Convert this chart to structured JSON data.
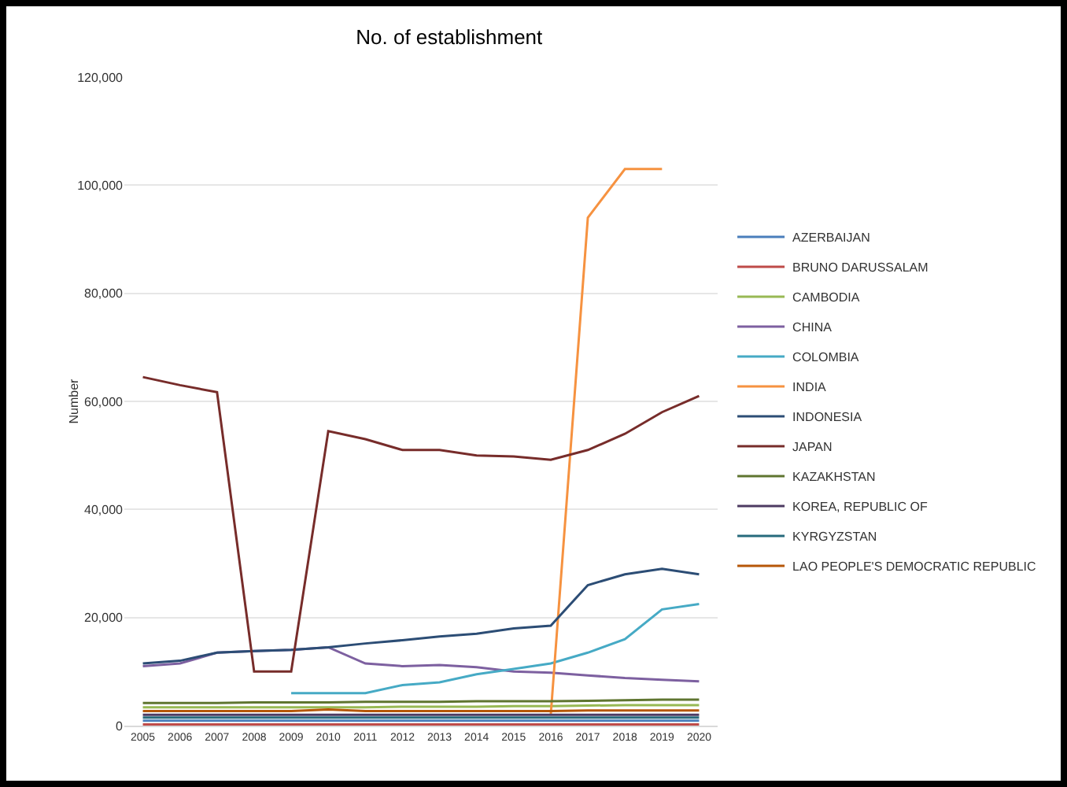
{
  "chart_data": {
    "type": "line",
    "title": "No. of establishment",
    "ylabel": "Number",
    "categories": [
      "2005",
      "2006",
      "2007",
      "2008",
      "2009",
      "2010",
      "2011",
      "2012",
      "2013",
      "2014",
      "2015",
      "2016",
      "2017",
      "2018",
      "2019",
      "2020"
    ],
    "series": [
      {
        "name": "AZERBAIJAN",
        "color": "#4a7ebb",
        "values": [
          900,
          900,
          900,
          900,
          900,
          900,
          900,
          900,
          900,
          900,
          900,
          900,
          900,
          900,
          900,
          900
        ]
      },
      {
        "name": "BRUNO DARUSSALAM",
        "color": "#be4b48",
        "values": [
          200,
          200,
          200,
          200,
          200,
          200,
          200,
          200,
          200,
          200,
          200,
          200,
          200,
          200,
          200,
          200
        ]
      },
      {
        "name": "CAMBODIA",
        "color": "#98b954",
        "values": [
          3400,
          3400,
          3400,
          3400,
          3400,
          3400,
          3400,
          3500,
          3500,
          3500,
          3600,
          3600,
          3700,
          3800,
          3800,
          3800
        ]
      },
      {
        "name": "CHINA",
        "color": "#7d60a0",
        "values": [
          11000,
          11500,
          13500,
          13800,
          14000,
          14500,
          11500,
          11000,
          11200,
          10800,
          10000,
          9800,
          9300,
          8800,
          8500,
          8200
        ]
      },
      {
        "name": "COLOMBIA",
        "color": "#46aac5",
        "values": [
          null,
          null,
          null,
          null,
          6000,
          6000,
          6000,
          7500,
          8000,
          9500,
          10500,
          11500,
          13500,
          16000,
          21500,
          22500
        ]
      },
      {
        "name": "INDIA",
        "color": "#f69240",
        "values": [
          null,
          null,
          null,
          null,
          null,
          null,
          null,
          null,
          null,
          null,
          null,
          2000,
          94000,
          103000,
          103000,
          null
        ]
      },
      {
        "name": "INDONESIA",
        "color": "#2c4d75",
        "values": [
          11500,
          12000,
          13500,
          13800,
          14000,
          14500,
          15200,
          15800,
          16500,
          17000,
          18000,
          18500,
          26000,
          28000,
          29000,
          28000
        ]
      },
      {
        "name": "JAPAN",
        "color": "#772c2a",
        "values": [
          64500,
          63000,
          61700,
          10000,
          10000,
          54500,
          53000,
          51000,
          51000,
          50000,
          49800,
          49200,
          51000,
          54000,
          58000,
          61000
        ]
      },
      {
        "name": "KAZAKHSTAN",
        "color": "#5f7530",
        "values": [
          4200,
          4200,
          4200,
          4300,
          4300,
          4300,
          4400,
          4400,
          4400,
          4500,
          4500,
          4500,
          4600,
          4700,
          4800,
          4800
        ]
      },
      {
        "name": "KOREA, REPUBLIC OF",
        "color": "#4d3b62",
        "values": [
          2000,
          2000,
          2000,
          2000,
          2000,
          2000,
          2000,
          2000,
          2000,
          2000,
          2000,
          2000,
          2000,
          2000,
          2000,
          2000
        ]
      },
      {
        "name": "KYRGYZSTAN",
        "color": "#276a7c",
        "values": [
          1500,
          1500,
          1500,
          1500,
          1500,
          1500,
          1500,
          1500,
          1500,
          1500,
          1500,
          1500,
          1500,
          1500,
          1500,
          1500
        ]
      },
      {
        "name": "LAO PEOPLE'S DEMOCRATIC REPUBLIC",
        "color": "#b65708",
        "values": [
          2700,
          2700,
          2700,
          2700,
          2700,
          3000,
          2700,
          2700,
          2700,
          2700,
          2700,
          2700,
          2800,
          2800,
          2800,
          2800
        ]
      }
    ],
    "ylim": [
      0,
      120000
    ],
    "yticks": [
      {
        "value": 0,
        "label": "0"
      },
      {
        "value": 20000,
        "label": "20,000"
      },
      {
        "value": 40000,
        "label": "40,000"
      },
      {
        "value": 60000,
        "label": "60,000"
      },
      {
        "value": 80000,
        "label": "80,000"
      },
      {
        "value": 100000,
        "label": "100,000"
      },
      {
        "value": 120000,
        "label": "120,000"
      }
    ],
    "grid": "y",
    "legend": "right",
    "marker": "none",
    "line_style": "solid"
  }
}
